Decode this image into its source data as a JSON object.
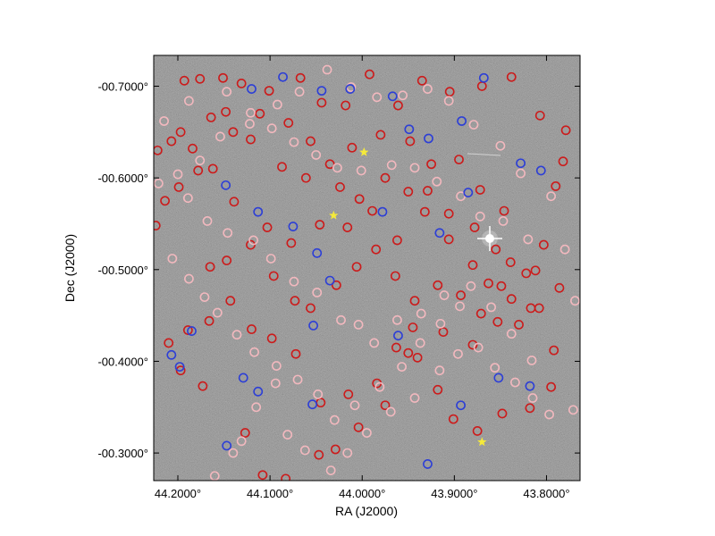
{
  "chart_data": {
    "type": "scatter",
    "title": "",
    "xlabel": "RA (J2000)",
    "ylabel": "Dec (J2000)",
    "xlim": [
      44.2262,
      43.7636
    ],
    "ylim": [
      -0.7336,
      -0.2699
    ],
    "grid": false,
    "legend": "none",
    "background": "astronomical image (dark grey noise field)",
    "x_ticks": [
      {
        "value": 44.2,
        "label": "44.2000°"
      },
      {
        "value": 44.1,
        "label": "44.1000°"
      },
      {
        "value": 44.0,
        "label": "44.0000°"
      },
      {
        "value": 43.9,
        "label": "43.9000°"
      },
      {
        "value": 43.8,
        "label": "43.8000°"
      }
    ],
    "y_ticks": [
      {
        "value": -0.3,
        "label": "-00.3000°"
      },
      {
        "value": -0.4,
        "label": "-00.4000°"
      },
      {
        "value": -0.5,
        "label": "-00.5000°"
      },
      {
        "value": -0.6,
        "label": "-00.6000°"
      },
      {
        "value": -0.7,
        "label": "-00.7000°"
      }
    ],
    "series": [
      {
        "marker": "circle-outline",
        "color": "#cc1b1b",
        "points": [
          [
            44.173,
            -0.373
          ],
          [
            44.197,
            -0.39
          ],
          [
            44.21,
            -0.42
          ],
          [
            44.189,
            -0.434
          ],
          [
            44.165,
            -0.503
          ],
          [
            44.127,
            -0.322
          ],
          [
            44.108,
            -0.276
          ],
          [
            44.083,
            -0.272
          ],
          [
            44.047,
            -0.298
          ],
          [
            44.029,
            -0.304
          ],
          [
            44.004,
            -0.328
          ],
          [
            43.975,
            -0.352
          ],
          [
            43.95,
            -0.409
          ],
          [
            43.945,
            -0.437
          ],
          [
            43.918,
            -0.369
          ],
          [
            43.901,
            -0.337
          ],
          [
            43.875,
            -0.324
          ],
          [
            43.848,
            -0.343
          ],
          [
            43.818,
            -0.349
          ],
          [
            43.795,
            -0.372
          ],
          [
            43.792,
            -0.412
          ],
          [
            43.808,
            -0.458
          ],
          [
            43.786,
            -0.48
          ],
          [
            43.803,
            -0.527
          ],
          [
            43.79,
            -0.591
          ],
          [
            43.782,
            -0.618
          ],
          [
            43.779,
            -0.652
          ],
          [
            43.807,
            -0.668
          ],
          [
            43.838,
            -0.71
          ],
          [
            43.87,
            -0.7
          ],
          [
            43.905,
            -0.694
          ],
          [
            43.935,
            -0.706
          ],
          [
            43.961,
            -0.679
          ],
          [
            43.992,
            -0.713
          ],
          [
            44.018,
            -0.679
          ],
          [
            44.044,
            -0.682
          ],
          [
            44.067,
            -0.709
          ],
          [
            44.101,
            -0.695
          ],
          [
            44.131,
            -0.703
          ],
          [
            44.151,
            -0.709
          ],
          [
            44.176,
            -0.708
          ],
          [
            44.193,
            -0.706
          ],
          [
            44.199,
            -0.59
          ],
          [
            44.214,
            -0.575
          ],
          [
            44.224,
            -0.548
          ],
          [
            44.178,
            -0.608
          ],
          [
            44.139,
            -0.574
          ],
          [
            44.103,
            -0.546
          ],
          [
            44.077,
            -0.529
          ],
          [
            44.046,
            -0.549
          ],
          [
            44.016,
            -0.546
          ],
          [
            43.989,
            -0.564
          ],
          [
            43.962,
            -0.532
          ],
          [
            43.929,
            -0.586
          ],
          [
            43.906,
            -0.561
          ],
          [
            43.878,
            -0.546
          ],
          [
            43.855,
            -0.522
          ],
          [
            43.839,
            -0.508
          ],
          [
            43.812,
            -0.499
          ],
          [
            43.853,
            -0.443
          ],
          [
            43.88,
            -0.418
          ],
          [
            43.912,
            -0.432
          ],
          [
            43.94,
            -0.404
          ],
          [
            43.963,
            -0.415
          ],
          [
            43.984,
            -0.376
          ],
          [
            44.015,
            -0.364
          ],
          [
            44.045,
            -0.355
          ],
          [
            44.072,
            -0.408
          ],
          [
            44.098,
            -0.425
          ],
          [
            44.12,
            -0.435
          ],
          [
            44.143,
            -0.466
          ],
          [
            44.166,
            -0.444
          ],
          [
            44.147,
            -0.51
          ],
          [
            44.121,
            -0.527
          ],
          [
            44.096,
            -0.493
          ],
          [
            44.073,
            -0.466
          ],
          [
            44.056,
            -0.458
          ],
          [
            44.028,
            -0.483
          ],
          [
            44.006,
            -0.503
          ],
          [
            43.985,
            -0.522
          ],
          [
            43.964,
            -0.493
          ],
          [
            43.943,
            -0.466
          ],
          [
            43.918,
            -0.483
          ],
          [
            43.893,
            -0.472
          ],
          [
            43.871,
            -0.452
          ],
          [
            43.849,
            -0.482
          ],
          [
            43.822,
            -0.496
          ],
          [
            43.846,
            -0.564
          ],
          [
            43.872,
            -0.587
          ],
          [
            43.895,
            -0.62
          ],
          [
            43.925,
            -0.615
          ],
          [
            43.948,
            -0.64
          ],
          [
            43.98,
            -0.647
          ],
          [
            44.011,
            -0.633
          ],
          [
            44.035,
            -0.615
          ],
          [
            44.061,
            -0.6
          ],
          [
            44.087,
            -0.612
          ],
          [
            44.121,
            -0.642
          ],
          [
            44.148,
            -0.672
          ],
          [
            44.164,
            -0.666
          ],
          [
            44.184,
            -0.632
          ],
          [
            44.207,
            -0.64
          ],
          [
            44.197,
            -0.65
          ],
          [
            44.222,
            -0.63
          ],
          [
            44.162,
            -0.61
          ],
          [
            44.14,
            -0.65
          ],
          [
            44.111,
            -0.67
          ],
          [
            44.08,
            -0.66
          ],
          [
            44.056,
            -0.64
          ],
          [
            44.024,
            -0.59
          ],
          [
            44.003,
            -0.577
          ],
          [
            43.975,
            -0.6
          ],
          [
            43.95,
            -0.585
          ],
          [
            43.932,
            -0.563
          ],
          [
            43.906,
            -0.533
          ],
          [
            43.88,
            -0.505
          ],
          [
            43.863,
            -0.485
          ],
          [
            43.838,
            -0.468
          ],
          [
            43.817,
            -0.458
          ],
          [
            43.83,
            -0.44
          ]
        ]
      },
      {
        "marker": "circle-outline",
        "color": "#f2b8be",
        "points": [
          [
            44.16,
            -0.275
          ],
          [
            44.14,
            -0.3
          ],
          [
            44.131,
            -0.313
          ],
          [
            44.115,
            -0.35
          ],
          [
            44.094,
            -0.376
          ],
          [
            44.081,
            -0.32
          ],
          [
            44.062,
            -0.303
          ],
          [
            44.034,
            -0.281
          ],
          [
            44.016,
            -0.3
          ],
          [
            43.995,
            -0.322
          ],
          [
            43.969,
            -0.345
          ],
          [
            43.943,
            -0.36
          ],
          [
            43.916,
            -0.39
          ],
          [
            43.896,
            -0.408
          ],
          [
            43.874,
            -0.415
          ],
          [
            43.856,
            -0.393
          ],
          [
            43.834,
            -0.377
          ],
          [
            43.815,
            -0.36
          ],
          [
            43.797,
            -0.342
          ],
          [
            43.771,
            -0.347
          ],
          [
            43.769,
            -0.466
          ],
          [
            43.78,
            -0.522
          ],
          [
            43.795,
            -0.58
          ],
          [
            43.828,
            -0.605
          ],
          [
            43.85,
            -0.635
          ],
          [
            43.879,
            -0.658
          ],
          [
            43.906,
            -0.684
          ],
          [
            43.929,
            -0.697
          ],
          [
            43.956,
            -0.69
          ],
          [
            43.984,
            -0.688
          ],
          [
            44.012,
            -0.699
          ],
          [
            44.038,
            -0.718
          ],
          [
            44.068,
            -0.694
          ],
          [
            44.092,
            -0.68
          ],
          [
            44.121,
            -0.671
          ],
          [
            44.147,
            -0.694
          ],
          [
            44.188,
            -0.684
          ],
          [
            44.215,
            -0.662
          ],
          [
            44.189,
            -0.578
          ],
          [
            44.168,
            -0.553
          ],
          [
            44.146,
            -0.54
          ],
          [
            44.118,
            -0.532
          ],
          [
            44.099,
            -0.512
          ],
          [
            44.074,
            -0.487
          ],
          [
            44.049,
            -0.475
          ],
          [
            44.023,
            -0.445
          ],
          [
            44.004,
            -0.44
          ],
          [
            43.987,
            -0.42
          ],
          [
            43.962,
            -0.445
          ],
          [
            43.936,
            -0.452
          ],
          [
            43.911,
            -0.472
          ],
          [
            43.882,
            -0.482
          ],
          [
            43.86,
            -0.459
          ],
          [
            43.838,
            -0.43
          ],
          [
            43.816,
            -0.401
          ],
          [
            43.82,
            -0.533
          ],
          [
            43.847,
            -0.553
          ],
          [
            43.872,
            -0.558
          ],
          [
            43.893,
            -0.58
          ],
          [
            43.919,
            -0.596
          ],
          [
            43.943,
            -0.611
          ],
          [
            43.968,
            -0.614
          ],
          [
            44.001,
            -0.608
          ],
          [
            44.027,
            -0.611
          ],
          [
            44.05,
            -0.625
          ],
          [
            44.074,
            -0.639
          ],
          [
            44.098,
            -0.654
          ],
          [
            44.122,
            -0.659
          ],
          [
            44.154,
            -0.645
          ],
          [
            44.176,
            -0.619
          ],
          [
            44.2,
            -0.604
          ],
          [
            44.221,
            -0.594
          ],
          [
            44.206,
            -0.512
          ],
          [
            44.188,
            -0.49
          ],
          [
            44.171,
            -0.47
          ],
          [
            44.157,
            -0.453
          ],
          [
            44.136,
            -0.429
          ],
          [
            44.117,
            -0.41
          ],
          [
            44.093,
            -0.395
          ],
          [
            44.07,
            -0.38
          ],
          [
            44.048,
            -0.364
          ],
          [
            44.03,
            -0.336
          ],
          [
            44.008,
            -0.352
          ],
          [
            43.981,
            -0.372
          ],
          [
            43.957,
            -0.394
          ],
          [
            43.937,
            -0.42
          ],
          [
            43.915,
            -0.441
          ],
          [
            43.894,
            -0.46
          ]
        ]
      },
      {
        "marker": "circle-outline",
        "color": "#2d3fd6",
        "points": [
          [
            44.198,
            -0.394
          ],
          [
            44.207,
            -0.407
          ],
          [
            44.185,
            -0.433
          ],
          [
            44.147,
            -0.308
          ],
          [
            44.129,
            -0.382
          ],
          [
            44.113,
            -0.367
          ],
          [
            44.054,
            -0.353
          ],
          [
            44.053,
            -0.439
          ],
          [
            44.035,
            -0.488
          ],
          [
            44.049,
            -0.518
          ],
          [
            44.075,
            -0.547
          ],
          [
            44.113,
            -0.563
          ],
          [
            44.148,
            -0.592
          ],
          [
            44.12,
            -0.697
          ],
          [
            44.086,
            -0.71
          ],
          [
            44.044,
            -0.695
          ],
          [
            44.013,
            -0.697
          ],
          [
            43.967,
            -0.689
          ],
          [
            43.949,
            -0.653
          ],
          [
            43.928,
            -0.643
          ],
          [
            43.892,
            -0.662
          ],
          [
            43.868,
            -0.709
          ],
          [
            43.828,
            -0.616
          ],
          [
            43.806,
            -0.608
          ],
          [
            43.818,
            -0.373
          ],
          [
            43.852,
            -0.382
          ],
          [
            43.893,
            -0.352
          ],
          [
            43.929,
            -0.288
          ],
          [
            43.961,
            -0.428
          ],
          [
            43.978,
            -0.563
          ],
          [
            43.916,
            -0.54
          ],
          [
            43.885,
            -0.584
          ]
        ]
      },
      {
        "marker": "star",
        "color": "#f5ea3a",
        "points": [
          [
            43.87,
            -0.312
          ],
          [
            44.031,
            -0.559
          ],
          [
            43.998,
            -0.628
          ]
        ]
      }
    ]
  }
}
